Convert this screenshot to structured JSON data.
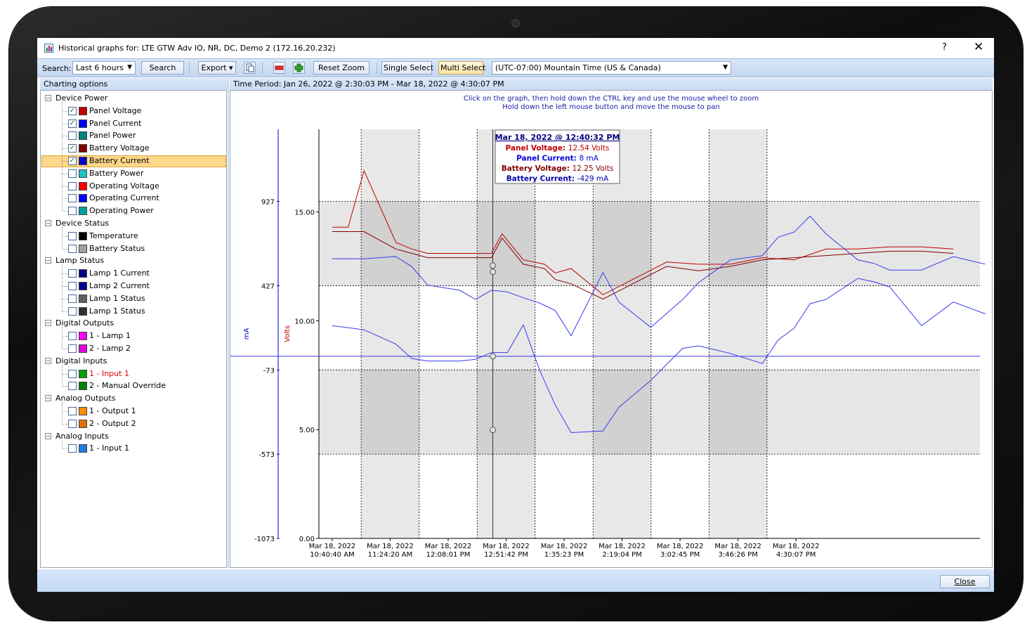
{
  "window": {
    "title": "Historical graphs for:  LTE GTW Adv IO, NR, DC, Demo 2 (172.16.20.232)",
    "help": "?",
    "close_glyph": "✕"
  },
  "toolbar": {
    "search_label": "Search:",
    "range_value": "Last 6 hours",
    "search_button": "Search",
    "export_button": "Export ▾",
    "reset_zoom": "Reset Zoom",
    "single_select": "Single Select",
    "multi_select": "Multi Select",
    "timezone_value": "(UTC-07:00) Mountain Time (US & Canada)",
    "icons": [
      "copy-icon",
      "minus-icon",
      "plus-icon"
    ]
  },
  "left_panel": {
    "header": "Charting options",
    "groups": [
      {
        "label": "Device Power",
        "items": [
          {
            "label": "Panel Voltage",
            "checked": true,
            "color": "#c00000"
          },
          {
            "label": "Panel Current",
            "checked": true,
            "color": "#0000ee"
          },
          {
            "label": "Panel Power",
            "checked": false,
            "color": "#008080"
          },
          {
            "label": "Battery Voltage",
            "checked": true,
            "color": "#800000"
          },
          {
            "label": "Battery Current",
            "checked": true,
            "color": "#0000cc",
            "selected": true
          },
          {
            "label": "Battery Power",
            "checked": false,
            "color": "#20c0c0"
          },
          {
            "label": "Operating Voltage",
            "checked": false,
            "color": "#ff0000"
          },
          {
            "label": "Operating Current",
            "checked": false,
            "color": "#0000ff"
          },
          {
            "label": "Operating Power",
            "checked": false,
            "color": "#00a0a0"
          }
        ]
      },
      {
        "label": "Device Status",
        "items": [
          {
            "label": "Temperature",
            "checked": false,
            "color": "#000000"
          },
          {
            "label": "Battery Status",
            "checked": false,
            "color": "#a0a0a0"
          }
        ]
      },
      {
        "label": "Lamp Status",
        "items": [
          {
            "label": "Lamp 1 Current",
            "checked": false,
            "color": "#000080"
          },
          {
            "label": "Lamp 2 Current",
            "checked": false,
            "color": "#000090"
          },
          {
            "label": "Lamp 1 Status",
            "checked": false,
            "color": "#606060"
          },
          {
            "label": "Lamp 1 Status",
            "checked": false,
            "color": "#303030"
          }
        ]
      },
      {
        "label": "Digital Outputs",
        "items": [
          {
            "label": "1 - Lamp 1",
            "checked": false,
            "color": "#ff00ff"
          },
          {
            "label": "2 - Lamp 2",
            "checked": false,
            "color": "#e000e0"
          }
        ]
      },
      {
        "label": "Digital Inputs",
        "items": [
          {
            "label": "1 - Input 1",
            "checked": false,
            "color": "#00a000",
            "label_color": "#e00000"
          },
          {
            "label": "2 - Manual Override",
            "checked": false,
            "color": "#008000"
          }
        ]
      },
      {
        "label": "Analog Outputs",
        "items": [
          {
            "label": "1 - Output 1",
            "checked": false,
            "color": "#ff8c00"
          },
          {
            "label": "2 - Output 2",
            "checked": false,
            "color": "#e07000"
          }
        ]
      },
      {
        "label": "Analog Inputs",
        "items": [
          {
            "label": "1 - Input 1",
            "checked": false,
            "color": "#1e7fd8"
          }
        ]
      }
    ]
  },
  "chart_panel": {
    "time_period": "Time Period: Jan 26, 2022 @ 2:30:03 PM   -   Mar 18, 2022 @ 4:30:07 PM",
    "hint_line1": "Click on the graph, then hold down the CTRL key and use the mouse wheel to zoom",
    "hint_line2": "Hold down the left mouse button and move the mouse to pan"
  },
  "tooltip": {
    "title": "Mar 18, 2022 @ 12:40:32 PM",
    "rows": [
      {
        "label": "Panel Voltage:",
        "value": "12.54 Volts",
        "color": "#c00000"
      },
      {
        "label": "Panel Current:",
        "value": "8 mA",
        "color": "#0000dd"
      },
      {
        "label": "Battery Voltage:",
        "value": "12.25 Volts",
        "color": "#800000"
      },
      {
        "label": "Battery Current:",
        "value": "-429 mA",
        "color": "#0000aa"
      }
    ]
  },
  "chart_data": {
    "type": "line",
    "y_left": {
      "label": "mA",
      "ticks": [
        "927",
        "427",
        "-73",
        "-573",
        "-1073"
      ],
      "color": "#0000cc"
    },
    "y_right": {
      "label": "Volts",
      "ticks": [
        "15.00",
        "10.00",
        "5.00",
        "0.00"
      ],
      "color": "#c00000"
    },
    "x_ticks": [
      [
        "Mar 18, 2022",
        "10:40:40 AM"
      ],
      [
        "Mar 18, 2022",
        "11:24:20 AM"
      ],
      [
        "Mar 18, 2022",
        "12:08:01 PM"
      ],
      [
        "Mar 18, 2022",
        "12:51:42 PM"
      ],
      [
        "Mar 18, 2022",
        "1:35:23 PM"
      ],
      [
        "Mar 18, 2022",
        "2:19:04 PM"
      ],
      [
        "Mar 18, 2022",
        "3:02:45 PM"
      ],
      [
        "Mar 18, 2022",
        "3:46:26 PM"
      ],
      [
        "Mar 18, 2022",
        "4:30:07 PM"
      ]
    ],
    "x_range_minutes": [
      -10,
      488
    ],
    "volts_range": [
      0,
      18.8
    ],
    "ma_range": [
      -1073,
      1355
    ],
    "cursor_minutes": 121,
    "tooltip_at_minutes": 121,
    "series": [
      {
        "name": "Panel Voltage",
        "axis": "volts",
        "color": "#c00000",
        "x": [
          0,
          12,
          24,
          48,
          60,
          72,
          96,
          120,
          128,
          144,
          160,
          168,
          180,
          204,
          252,
          276,
          300,
          324,
          348,
          372,
          396,
          420,
          444,
          468
        ],
        "y": [
          14.3,
          14.3,
          16.9,
          13.6,
          13.3,
          13.1,
          13.1,
          13.1,
          14.0,
          12.8,
          12.6,
          12.2,
          12.4,
          11.2,
          12.7,
          12.6,
          12.6,
          12.9,
          12.8,
          13.3,
          13.3,
          13.4,
          13.4,
          13.3
        ]
      },
      {
        "name": "Battery Voltage",
        "axis": "volts",
        "color": "#800000",
        "x": [
          0,
          24,
          48,
          60,
          72,
          96,
          120,
          128,
          144,
          160,
          168,
          180,
          204,
          252,
          276,
          300,
          324,
          348,
          372,
          396,
          420,
          444,
          468
        ],
        "y": [
          14.1,
          14.1,
          13.3,
          13.1,
          12.9,
          12.9,
          12.9,
          13.8,
          12.6,
          12.4,
          11.9,
          11.7,
          11.0,
          12.5,
          12.3,
          12.5,
          12.8,
          12.9,
          13.0,
          13.1,
          13.2,
          13.2,
          13.1
        ]
      },
      {
        "name": "Panel Current",
        "axis": "ma",
        "color": "#3a3aee",
        "x": [
          0,
          24,
          48,
          60,
          72,
          96,
          108,
          120,
          132,
          144,
          156,
          168,
          180,
          204,
          216,
          240,
          264,
          276,
          300,
          324,
          336,
          348,
          360,
          372,
          396,
          408,
          420,
          444,
          468,
          492
        ],
        "y": [
          587,
          587,
          600,
          540,
          430,
          400,
          345,
          400,
          390,
          355,
          325,
          280,
          130,
          505,
          330,
          180,
          345,
          445,
          580,
          605,
          715,
          745,
          840,
          735,
          580,
          560,
          520,
          520,
          600,
          555
        ]
      },
      {
        "name": "Battery Current",
        "axis": "ma",
        "color": "#3a3aee",
        "x": [
          0,
          24,
          48,
          60,
          72,
          96,
          108,
          120,
          132,
          144,
          156,
          168,
          180,
          204,
          216,
          240,
          264,
          276,
          300,
          324,
          336,
          348,
          360,
          372,
          396,
          408,
          420,
          444,
          468,
          492
        ],
        "y": [
          190,
          165,
          80,
          -5,
          -20,
          -20,
          -10,
          30,
          30,
          195,
          -70,
          -280,
          -445,
          -435,
          -295,
          -135,
          55,
          70,
          25,
          -35,
          105,
          175,
          320,
          345,
          470,
          450,
          420,
          190,
          330,
          260
        ]
      }
    ]
  },
  "footer": {
    "close_button": "Close"
  }
}
